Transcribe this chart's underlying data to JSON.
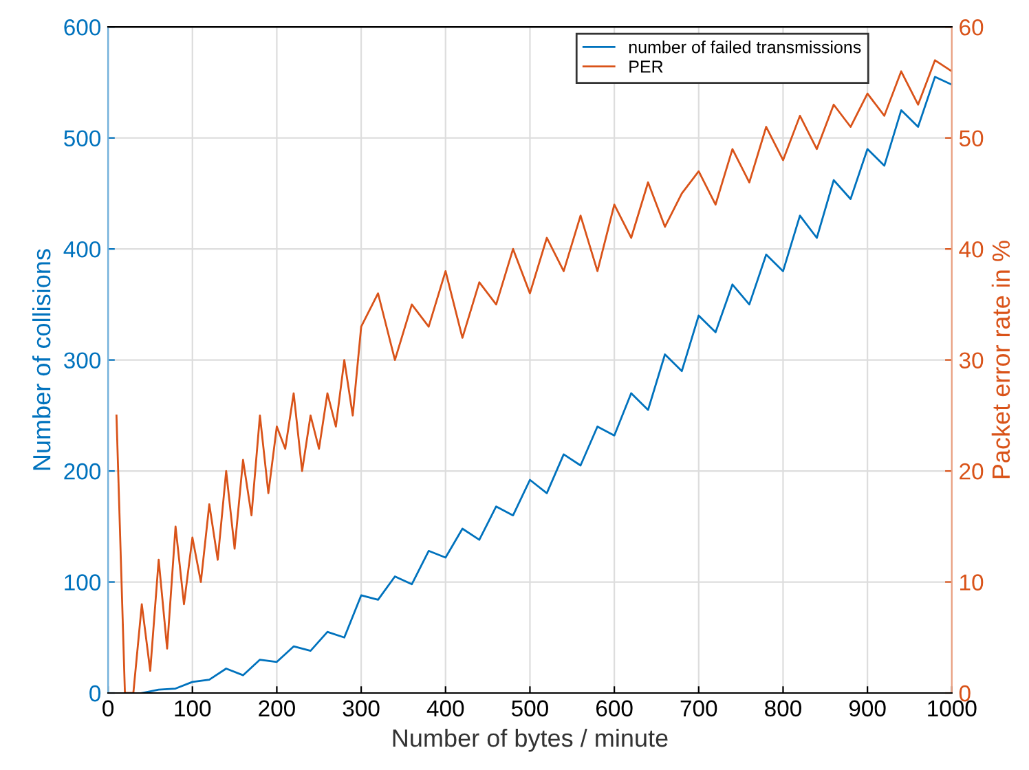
{
  "chart_data": {
    "type": "line",
    "xlabel": "Number of bytes / minute",
    "ylabel": "Number of collisions",
    "y2label": "Packet error rate in %",
    "xlim": [
      0,
      1000
    ],
    "xticks": [
      0,
      100,
      200,
      300,
      400,
      500,
      600,
      700,
      800,
      900,
      1000
    ],
    "ylim": [
      0,
      600
    ],
    "yticks": [
      0,
      100,
      200,
      300,
      400,
      500,
      600
    ],
    "y2lim": [
      0,
      60
    ],
    "y2ticks": [
      0,
      10,
      20,
      30,
      40,
      50,
      60
    ],
    "grid": true,
    "legend": "top right",
    "marker": "none",
    "line_style": "solid",
    "series": [
      {
        "name": "number of failed transmissions",
        "color": "#0072bd",
        "x": [
          40,
          60,
          80,
          100,
          120,
          140,
          160,
          180,
          200,
          220,
          240,
          260,
          280,
          300,
          320,
          340,
          360,
          380,
          400,
          420,
          440,
          460,
          480,
          500,
          520,
          540,
          560,
          580,
          600,
          620,
          640,
          660,
          680,
          700,
          720,
          740,
          760,
          780,
          800,
          820,
          840,
          860,
          880,
          900,
          920,
          940,
          960,
          980,
          1000
        ],
        "values": [
          0,
          3,
          4,
          10,
          12,
          22,
          16,
          30,
          28,
          42,
          38,
          55,
          50,
          88,
          84,
          105,
          98,
          128,
          122,
          148,
          138,
          168,
          160,
          192,
          180,
          215,
          205,
          240,
          232,
          270,
          255,
          305,
          290,
          340,
          325,
          368,
          350,
          395,
          380,
          430,
          410,
          462,
          445,
          490,
          475,
          525,
          510,
          555,
          548
        ]
      },
      {
        "name": "PER",
        "color": "#d95319",
        "axis": "y2",
        "x": [
          10,
          20,
          30,
          40,
          50,
          60,
          70,
          80,
          90,
          100,
          110,
          120,
          130,
          140,
          150,
          160,
          170,
          180,
          190,
          200,
          210,
          220,
          230,
          240,
          250,
          260,
          270,
          280,
          290,
          300,
          320,
          340,
          360,
          380,
          400,
          420,
          440,
          460,
          480,
          500,
          520,
          540,
          560,
          580,
          600,
          620,
          640,
          660,
          680,
          700,
          720,
          740,
          760,
          780,
          800,
          820,
          840,
          860,
          880,
          900,
          920,
          940,
          960,
          980,
          1000
        ],
        "values": [
          25,
          0,
          0,
          8,
          2,
          12,
          4,
          15,
          8,
          14,
          10,
          17,
          12,
          20,
          13,
          21,
          16,
          25,
          18,
          24,
          22,
          27,
          20,
          25,
          22,
          27,
          24,
          30,
          25,
          33,
          36,
          30,
          35,
          33,
          38,
          32,
          37,
          35,
          40,
          36,
          41,
          38,
          43,
          38,
          44,
          41,
          46,
          42,
          45,
          47,
          44,
          49,
          46,
          51,
          48,
          52,
          49,
          53,
          51,
          54,
          52,
          56,
          53,
          57,
          56
        ]
      }
    ]
  }
}
